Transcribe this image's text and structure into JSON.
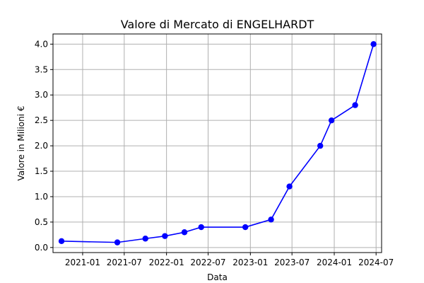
{
  "chart_data": {
    "type": "line",
    "title": "Valore di Mercato di ENGELHARDT",
    "xlabel": "Data",
    "ylabel": "Valore in Milioni €",
    "x_type": "date",
    "xlim": [
      "2020-08-25",
      "2024-07-25"
    ],
    "ylim": [
      -0.1,
      4.2
    ],
    "x_ticks": [
      {
        "date": "2021-01-01",
        "label": "2021-01"
      },
      {
        "date": "2021-07-01",
        "label": "2021-07"
      },
      {
        "date": "2022-01-01",
        "label": "2022-01"
      },
      {
        "date": "2022-07-01",
        "label": "2022-07"
      },
      {
        "date": "2023-01-01",
        "label": "2023-01"
      },
      {
        "date": "2023-07-01",
        "label": "2023-07"
      },
      {
        "date": "2024-01-01",
        "label": "2024-01"
      },
      {
        "date": "2024-07-01",
        "label": "2024-07"
      }
    ],
    "y_ticks": [
      {
        "value": 0.0,
        "label": "0.0"
      },
      {
        "value": 0.5,
        "label": "0.5"
      },
      {
        "value": 1.0,
        "label": "1.0"
      },
      {
        "value": 1.5,
        "label": "1.5"
      },
      {
        "value": 2.0,
        "label": "2.0"
      },
      {
        "value": 2.5,
        "label": "2.5"
      },
      {
        "value": 3.0,
        "label": "3.0"
      },
      {
        "value": 3.5,
        "label": "3.5"
      },
      {
        "value": 4.0,
        "label": "4.0"
      }
    ],
    "grid": true,
    "color": "#0000ff",
    "series": [
      {
        "points": [
          {
            "date": "2020-10-01",
            "value": 0.125
          },
          {
            "date": "2021-06-01",
            "value": 0.1
          },
          {
            "date": "2021-10-01",
            "value": 0.175
          },
          {
            "date": "2021-12-25",
            "value": 0.225
          },
          {
            "date": "2022-03-20",
            "value": 0.3
          },
          {
            "date": "2022-06-01",
            "value": 0.4
          },
          {
            "date": "2022-12-10",
            "value": 0.4
          },
          {
            "date": "2023-04-01",
            "value": 0.55
          },
          {
            "date": "2023-06-20",
            "value": 1.2
          },
          {
            "date": "2023-11-01",
            "value": 2.0
          },
          {
            "date": "2023-12-20",
            "value": 2.5
          },
          {
            "date": "2024-04-01",
            "value": 2.8
          },
          {
            "date": "2024-06-20",
            "value": 4.0
          }
        ]
      }
    ]
  }
}
